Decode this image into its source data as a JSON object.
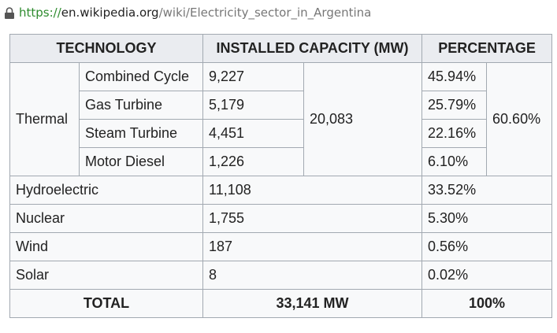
{
  "address_bar": {
    "scheme": "https://",
    "host": "en.wikipedia.org",
    "path": "/wiki/Electricity_sector_in_Argentina"
  },
  "table": {
    "header": [
      "TECHNOLOGY",
      "INSTALLED CAPACITY (MW)",
      "PERCENTAGE"
    ],
    "thermal": {
      "label": "Thermal",
      "subtotal": "20,083",
      "subtotal_percentage": "60.60%",
      "rows": [
        [
          "Combined Cycle",
          "9,227",
          "45.94%"
        ],
        [
          "Gas Turbine",
          "5,179",
          "25.79%"
        ],
        [
          "Steam Turbine",
          "4,451",
          "22.16%"
        ],
        [
          "Motor Diesel",
          "1,226",
          "6.10%"
        ]
      ]
    },
    "rows": [
      [
        "Hydroelectric",
        "11,108",
        "33.52%"
      ],
      [
        "Nuclear",
        "1,755",
        "5.30%"
      ],
      [
        "Wind",
        "187",
        "0.56%"
      ],
      [
        "Solar",
        "8",
        "0.02%"
      ]
    ],
    "total": [
      "TOTAL",
      "33,141 MW",
      "100%"
    ]
  }
}
